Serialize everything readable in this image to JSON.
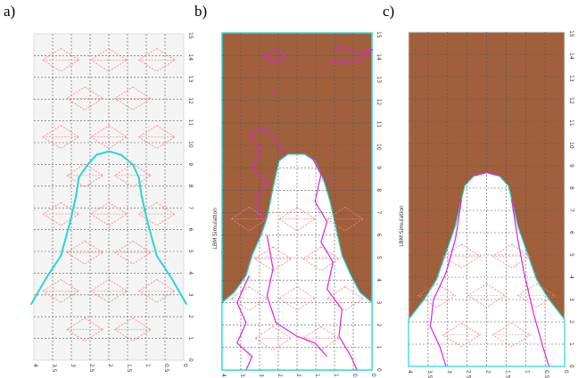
{
  "panels": [
    {
      "label": "a)",
      "y_ticks": [
        "0",
        "1",
        "2",
        "3",
        "4",
        "5",
        "6",
        "7",
        "8",
        "9",
        "10",
        "11",
        "12",
        "13",
        "14",
        "15"
      ],
      "x_ticks": [
        "4",
        "3.5",
        "3",
        "2.5",
        "2",
        "1.5",
        "1",
        "0.5",
        "0"
      ],
      "side_label": ""
    },
    {
      "label": "b)",
      "y_ticks": [
        "0",
        "1",
        "2",
        "3",
        "4",
        "5",
        "6",
        "7",
        "8",
        "9",
        "10",
        "11",
        "12",
        "13",
        "14",
        "15"
      ],
      "x_ticks": [
        "4",
        "3.5",
        "3",
        "2.5",
        "2",
        "1.5",
        "1",
        "0.5",
        "0"
      ],
      "side_label": "LBM Simulation"
    },
    {
      "label": "c)",
      "y_ticks": [
        "0",
        "1",
        "2",
        "3",
        "4",
        "5",
        "6",
        "7",
        "8",
        "9",
        "10",
        "11",
        "12",
        "13",
        "14",
        "15"
      ],
      "x_ticks": [
        "4",
        "3.5",
        "3",
        "2.5",
        "2",
        "1.5",
        "1",
        "0.5",
        "0"
      ],
      "side_label": "LBM Simulation"
    }
  ],
  "colors": {
    "fill": "#a0603c",
    "interface": "#26d6d6",
    "contour": "#e020e0",
    "diamonds": "#f08080",
    "grid": "#555555"
  }
}
